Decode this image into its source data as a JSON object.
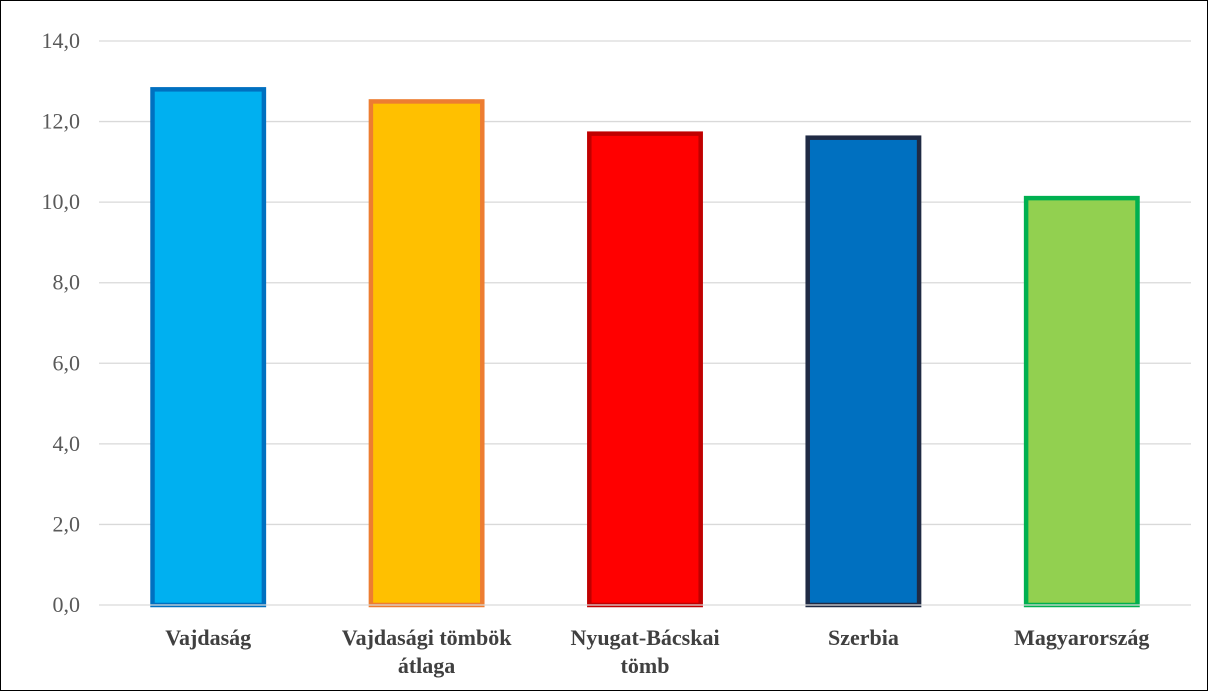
{
  "chart_data": {
    "type": "bar",
    "title": "",
    "xlabel": "",
    "ylabel": "",
    "categories": [
      [
        "Vajdaság"
      ],
      [
        "Vajdasági tömbök",
        "átlaga"
      ],
      [
        "Nyugat-Bácskai",
        "tömb"
      ],
      [
        "Szerbia"
      ],
      [
        "Magyarország"
      ]
    ],
    "values": [
      12.8,
      12.5,
      11.7,
      11.6,
      10.1
    ],
    "fill_colors": [
      "#00b0f0",
      "#ffc000",
      "#ff0000",
      "#0070c0",
      "#92d050"
    ],
    "edge_colors": [
      "#0070c0",
      "#ed7d31",
      "#c00000",
      "#1f2a44",
      "#00b050"
    ],
    "ylim": [
      0,
      14
    ],
    "yticks": [
      "0,0",
      "2,0",
      "4,0",
      "6,0",
      "8,0",
      "10,0",
      "12,0",
      "14,0"
    ],
    "grid": true,
    "legend": "none"
  }
}
